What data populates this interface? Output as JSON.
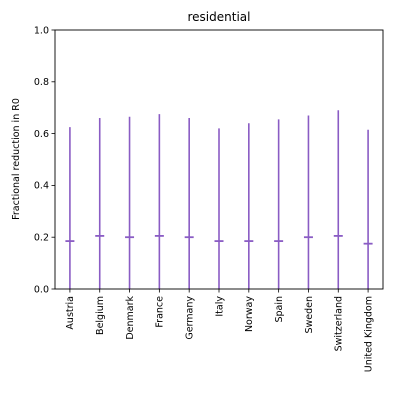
{
  "chart_data": {
    "type": "errorbar",
    "title": "residential",
    "xlabel": "",
    "ylabel": "Fractional reduction in R0",
    "ylim": [
      0.0,
      1.0
    ],
    "yticks": [
      "0.0",
      "0.2",
      "0.4",
      "0.6",
      "0.8",
      "1.0"
    ],
    "grid": false,
    "categories": [
      "Austria",
      "Belgium",
      "Denmark",
      "France",
      "Germany",
      "Italy",
      "Norway",
      "Spain",
      "Sweden",
      "Switzerland",
      "United Kingdom"
    ],
    "series": [
      {
        "color": "#8a5cc4",
        "median": [
          0.185,
          0.205,
          0.2,
          0.205,
          0.2,
          0.185,
          0.185,
          0.185,
          0.2,
          0.205,
          0.175
        ],
        "lower": [
          0.0,
          0.0,
          0.0,
          0.0,
          0.0,
          0.0,
          0.0,
          0.0,
          0.0,
          0.0,
          0.0
        ],
        "upper": [
          0.625,
          0.66,
          0.665,
          0.675,
          0.66,
          0.62,
          0.64,
          0.655,
          0.67,
          0.69,
          0.615
        ]
      }
    ]
  }
}
